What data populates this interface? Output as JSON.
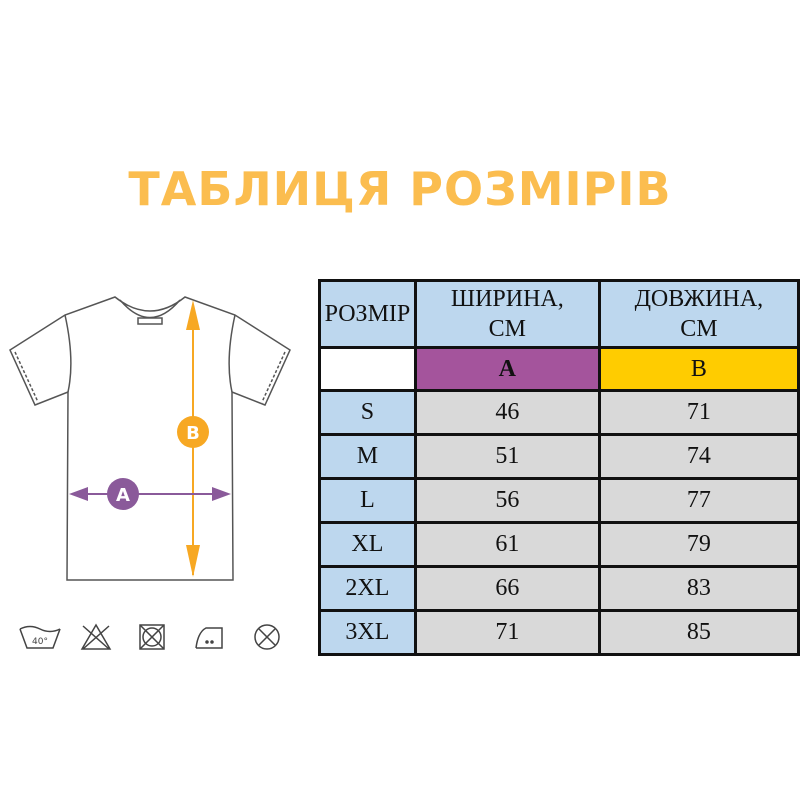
{
  "title": "ТАБЛИЦЯ РОЗМІРІВ",
  "colors": {
    "title": "#fbbd4f",
    "header": "#bdd7ee",
    "cell": "#d9d9d9",
    "a": "#a4549c",
    "b": "#ffcc00"
  },
  "diagram": {
    "a_label": "A",
    "b_label": "B",
    "care_icons": [
      "wash-40-icon",
      "no-bleach-icon",
      "no-tumble-dry-icon",
      "iron-low-icon",
      "no-dry-clean-icon"
    ],
    "wash_temp": "40°"
  },
  "table": {
    "headers": [
      "РОЗМІР",
      "ШИРИНА, СМ",
      "ДОВЖИНА, СМ"
    ],
    "codes": [
      "",
      "A",
      "B"
    ],
    "rows": [
      [
        "S",
        "46",
        "71"
      ],
      [
        "M",
        "51",
        "74"
      ],
      [
        "L",
        "56",
        "77"
      ],
      [
        "XL",
        "61",
        "79"
      ],
      [
        "2XL",
        "66",
        "83"
      ],
      [
        "3XL",
        "71",
        "85"
      ]
    ]
  }
}
